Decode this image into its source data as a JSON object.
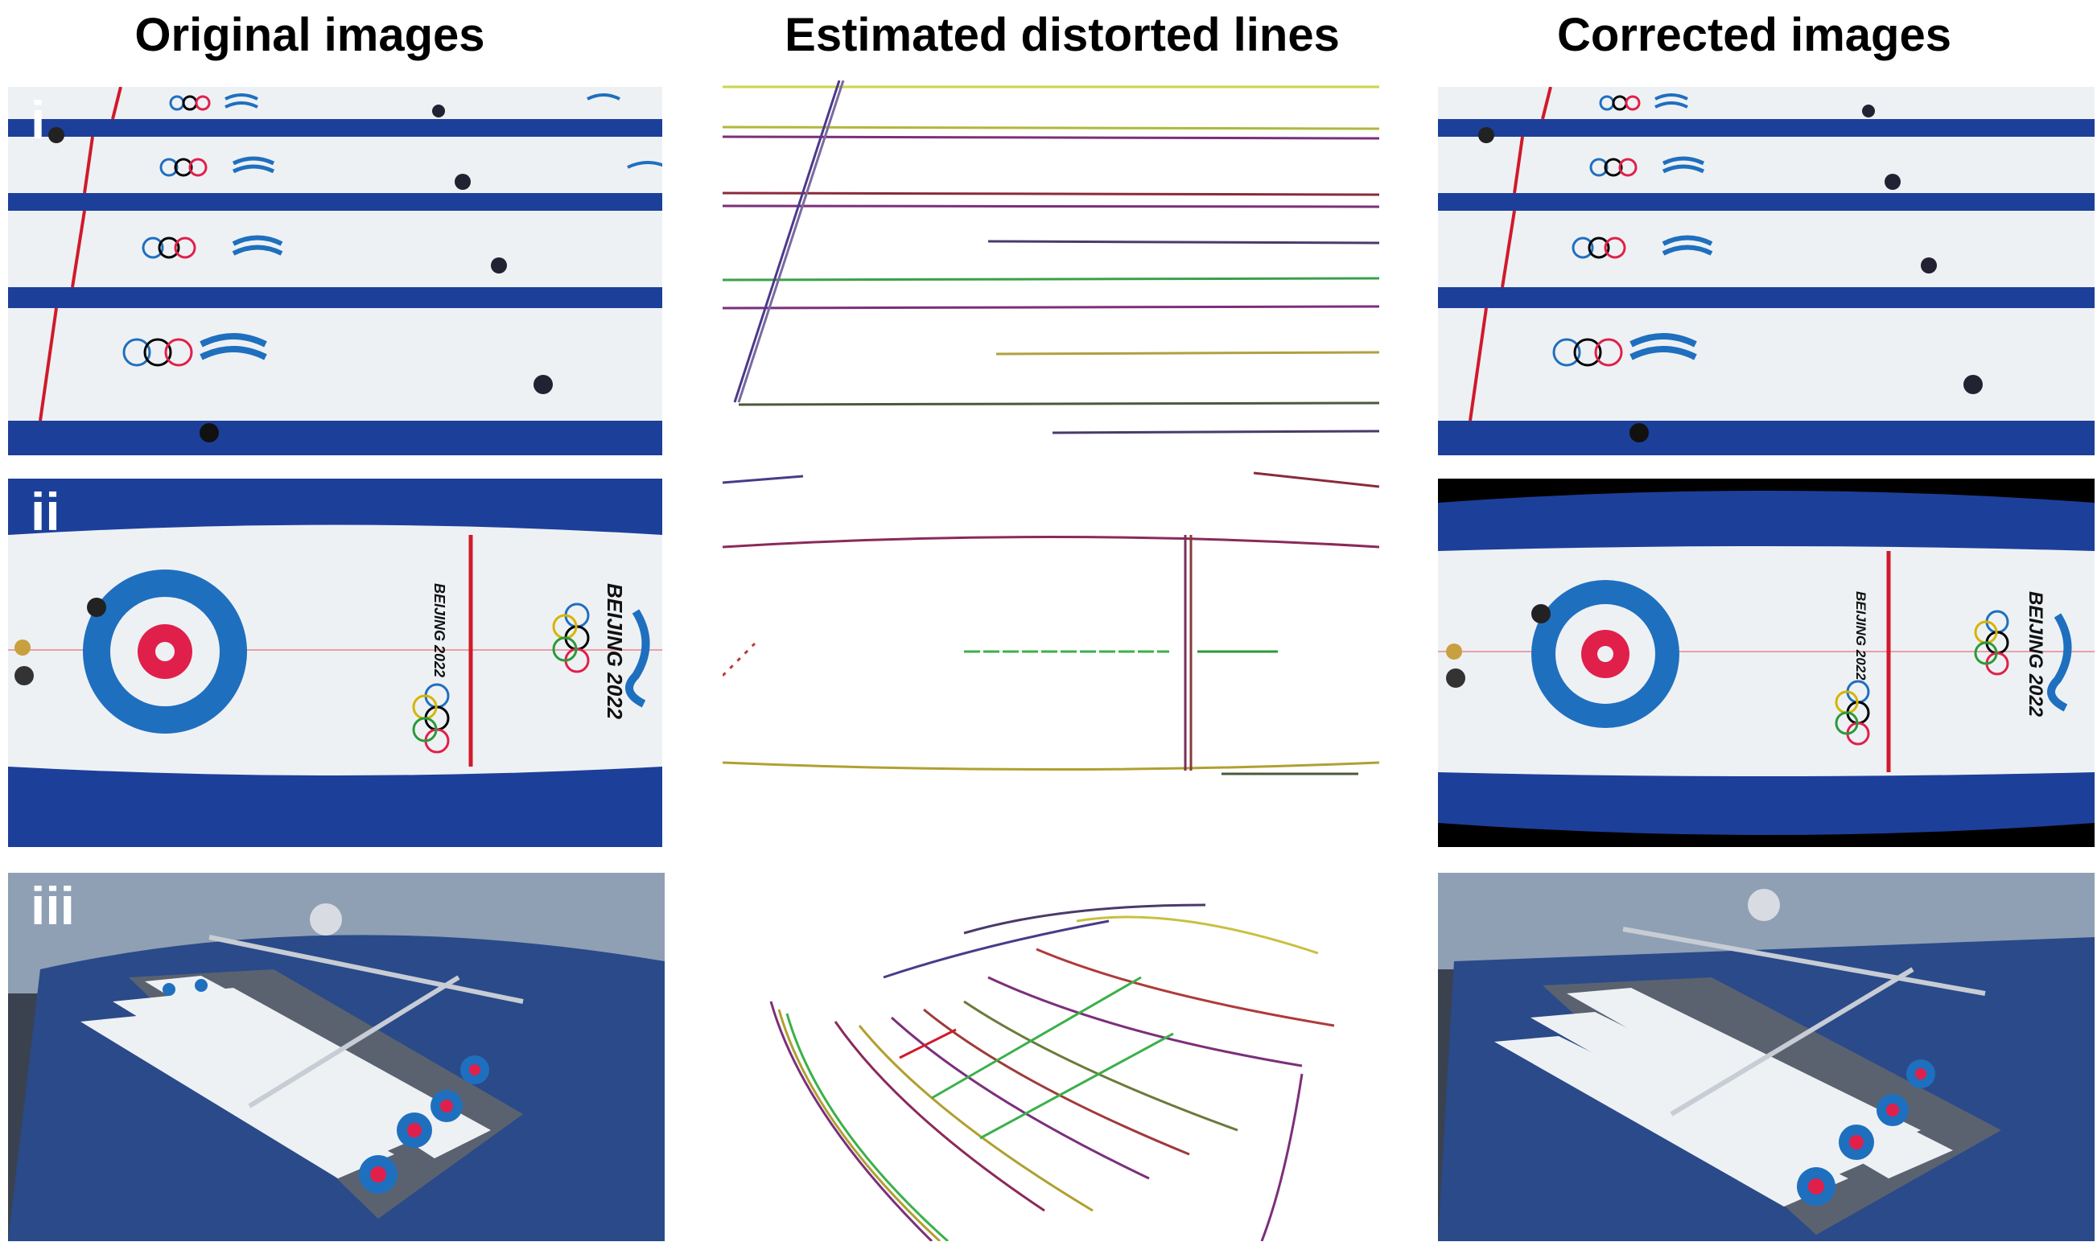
{
  "columns": {
    "original": "Original images",
    "lines": "Estimated distorted lines",
    "corrected": "Corrected images"
  },
  "rows": [
    {
      "label": "i"
    },
    {
      "label": "ii"
    },
    {
      "label": "iii"
    }
  ],
  "logo_text": "BEIJING 2022",
  "colors": {
    "ice": "#eef1f4",
    "blue_border": "#1c3f9a",
    "house_blue": "#1f6fbf",
    "house_red": "#e0204a",
    "hog_line": "#d01a2a",
    "background_white": "#ffffff"
  }
}
